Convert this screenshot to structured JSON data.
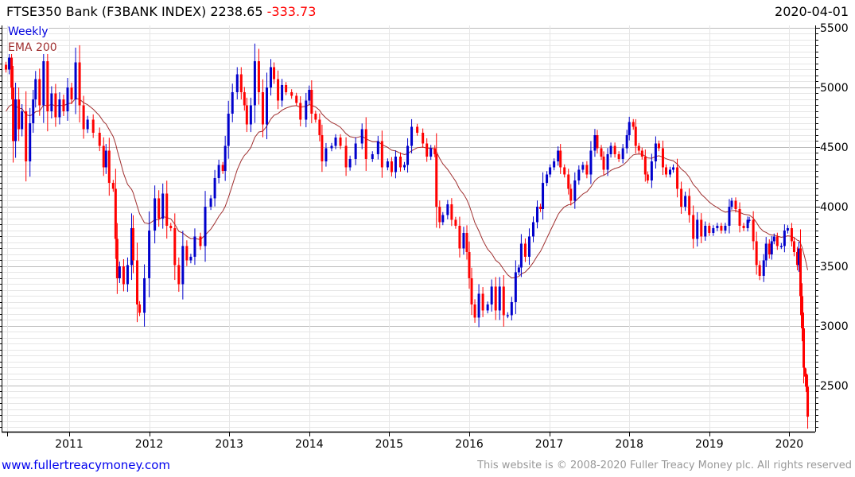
{
  "header": {
    "name": "FTSE350 Bank (F3BANK INDEX)",
    "last": "2238.65",
    "change": "-333.73",
    "date": "2020-04-01"
  },
  "legend": {
    "series": "Weekly",
    "ema": "EMA 200"
  },
  "footer": {
    "site": "www.fullertreacymoney.com",
    "copyright": "This website is © 2008-2020 Fuller Treacy Money plc. All rights reserved"
  },
  "colors": {
    "up": "#0000cc",
    "down": "#ff0000",
    "ema": "#a03030",
    "grid_major": "#bbbbbb",
    "grid_minor": "#e6e6e6"
  },
  "chart_data": {
    "type": "candlestick",
    "title": "FTSE350 Bank (F3BANK INDEX)",
    "xlim": [
      2010.155,
      2020.324
    ],
    "ylim": [
      2113,
      5520
    ],
    "x_ticks": [
      2011,
      2012,
      2013,
      2014,
      2015,
      2016,
      2017,
      2018,
      2019,
      2020
    ],
    "x_tick_labels": [
      "2011",
      "2012",
      "2013",
      "2014",
      "2015",
      "2016",
      "2017",
      "2018",
      "2019",
      "2020"
    ],
    "y_ticks": [
      2500,
      3000,
      3500,
      4000,
      4500,
      5000,
      5500
    ],
    "y_tick_labels": [
      "2500",
      "3000",
      "3500",
      "4000",
      "4500",
      "5000",
      "5500"
    ],
    "y_minor_step": 50,
    "grid": true,
    "ema_seed": 4800,
    "ema_time_constant_years": 0.4,
    "closes": [
      [
        2010.21,
        5150
      ],
      [
        2010.25,
        5250
      ],
      [
        2010.28,
        5000
      ],
      [
        2010.3,
        4550
      ],
      [
        2010.33,
        4900
      ],
      [
        2010.37,
        4650
      ],
      [
        2010.41,
        4800
      ],
      [
        2010.46,
        4380
      ],
      [
        2010.51,
        4700
      ],
      [
        2010.55,
        4900
      ],
      [
        2010.58,
        5070
      ],
      [
        2010.63,
        4850
      ],
      [
        2010.68,
        5220
      ],
      [
        2010.73,
        4800
      ],
      [
        2010.78,
        4950
      ],
      [
        2010.83,
        4750
      ],
      [
        2010.88,
        4900
      ],
      [
        2010.93,
        4800
      ],
      [
        2010.98,
        5000
      ],
      [
        2011.03,
        4900
      ],
      [
        2011.08,
        5210
      ],
      [
        2011.13,
        4850
      ],
      [
        2011.18,
        4650
      ],
      [
        2011.23,
        4730
      ],
      [
        2011.3,
        4620
      ],
      [
        2011.38,
        4510
      ],
      [
        2011.43,
        4330
      ],
      [
        2011.46,
        4470
      ],
      [
        2011.5,
        4200
      ],
      [
        2011.55,
        4150
      ],
      [
        2011.58,
        3730
      ],
      [
        2011.6,
        3400
      ],
      [
        2011.63,
        3500
      ],
      [
        2011.68,
        3350
      ],
      [
        2011.73,
        3510
      ],
      [
        2011.78,
        3820
      ],
      [
        2011.8,
        3550
      ],
      [
        2011.85,
        3180
      ],
      [
        2011.88,
        3110
      ],
      [
        2011.94,
        3400
      ],
      [
        2012.0,
        3800
      ],
      [
        2012.07,
        4070
      ],
      [
        2012.12,
        3900
      ],
      [
        2012.17,
        4110
      ],
      [
        2012.22,
        3840
      ],
      [
        2012.27,
        3820
      ],
      [
        2012.32,
        3510
      ],
      [
        2012.37,
        3350
      ],
      [
        2012.42,
        3670
      ],
      [
        2012.47,
        3550
      ],
      [
        2012.52,
        3580
      ],
      [
        2012.57,
        3750
      ],
      [
        2012.64,
        3670
      ],
      [
        2012.7,
        4000
      ],
      [
        2012.77,
        4070
      ],
      [
        2012.82,
        4240
      ],
      [
        2012.87,
        4350
      ],
      [
        2012.92,
        4300
      ],
      [
        2012.95,
        4510
      ],
      [
        2012.99,
        4780
      ],
      [
        2013.04,
        4960
      ],
      [
        2013.1,
        5110
      ],
      [
        2013.15,
        4960
      ],
      [
        2013.19,
        4850
      ],
      [
        2013.22,
        4690
      ],
      [
        2013.27,
        4850
      ],
      [
        2013.32,
        5220
      ],
      [
        2013.37,
        4960
      ],
      [
        2013.42,
        4690
      ],
      [
        2013.47,
        5000
      ],
      [
        2013.52,
        5170
      ],
      [
        2013.56,
        5070
      ],
      [
        2013.61,
        4890
      ],
      [
        2013.66,
        5020
      ],
      [
        2013.71,
        4960
      ],
      [
        2013.78,
        4930
      ],
      [
        2013.84,
        4870
      ],
      [
        2013.89,
        4730
      ],
      [
        2013.96,
        4890
      ],
      [
        2014.0,
        4980
      ],
      [
        2014.03,
        4780
      ],
      [
        2014.08,
        4730
      ],
      [
        2014.13,
        4600
      ],
      [
        2014.16,
        4380
      ],
      [
        2014.21,
        4490
      ],
      [
        2014.28,
        4510
      ],
      [
        2014.33,
        4580
      ],
      [
        2014.39,
        4510
      ],
      [
        2014.46,
        4330
      ],
      [
        2014.51,
        4400
      ],
      [
        2014.58,
        4530
      ],
      [
        2014.66,
        4650
      ],
      [
        2014.71,
        4400
      ],
      [
        2014.79,
        4440
      ],
      [
        2014.86,
        4550
      ],
      [
        2014.91,
        4330
      ],
      [
        2014.98,
        4380
      ],
      [
        2015.03,
        4290
      ],
      [
        2015.08,
        4420
      ],
      [
        2015.14,
        4330
      ],
      [
        2015.19,
        4350
      ],
      [
        2015.23,
        4510
      ],
      [
        2015.28,
        4670
      ],
      [
        2015.35,
        4620
      ],
      [
        2015.42,
        4530
      ],
      [
        2015.47,
        4420
      ],
      [
        2015.52,
        4490
      ],
      [
        2015.57,
        4440
      ],
      [
        2015.59,
        4000
      ],
      [
        2015.63,
        3870
      ],
      [
        2015.67,
        3930
      ],
      [
        2015.73,
        4020
      ],
      [
        2015.78,
        3890
      ],
      [
        2015.83,
        3840
      ],
      [
        2015.88,
        3650
      ],
      [
        2015.93,
        3780
      ],
      [
        2015.97,
        3620
      ],
      [
        2016.0,
        3400
      ],
      [
        2016.03,
        3180
      ],
      [
        2016.07,
        3070
      ],
      [
        2016.12,
        3270
      ],
      [
        2016.17,
        3130
      ],
      [
        2016.23,
        3180
      ],
      [
        2016.28,
        3330
      ],
      [
        2016.33,
        3130
      ],
      [
        2016.38,
        3330
      ],
      [
        2016.43,
        3090
      ],
      [
        2016.48,
        3090
      ],
      [
        2016.53,
        3200
      ],
      [
        2016.58,
        3450
      ],
      [
        2016.62,
        3490
      ],
      [
        2016.65,
        3690
      ],
      [
        2016.7,
        3580
      ],
      [
        2016.75,
        3750
      ],
      [
        2016.8,
        3870
      ],
      [
        2016.85,
        4000
      ],
      [
        2016.89,
        3980
      ],
      [
        2016.92,
        4200
      ],
      [
        2016.97,
        4270
      ],
      [
        2017.01,
        4330
      ],
      [
        2017.06,
        4380
      ],
      [
        2017.11,
        4470
      ],
      [
        2017.14,
        4330
      ],
      [
        2017.19,
        4270
      ],
      [
        2017.24,
        4150
      ],
      [
        2017.27,
        4050
      ],
      [
        2017.32,
        4220
      ],
      [
        2017.37,
        4310
      ],
      [
        2017.42,
        4350
      ],
      [
        2017.47,
        4270
      ],
      [
        2017.52,
        4470
      ],
      [
        2017.57,
        4600
      ],
      [
        2017.6,
        4490
      ],
      [
        2017.65,
        4420
      ],
      [
        2017.68,
        4310
      ],
      [
        2017.73,
        4440
      ],
      [
        2017.77,
        4510
      ],
      [
        2017.82,
        4440
      ],
      [
        2017.87,
        4400
      ],
      [
        2017.92,
        4490
      ],
      [
        2017.97,
        4600
      ],
      [
        2018.0,
        4710
      ],
      [
        2018.05,
        4670
      ],
      [
        2018.08,
        4510
      ],
      [
        2018.12,
        4470
      ],
      [
        2018.16,
        4420
      ],
      [
        2018.2,
        4270
      ],
      [
        2018.23,
        4220
      ],
      [
        2018.28,
        4380
      ],
      [
        2018.33,
        4530
      ],
      [
        2018.37,
        4490
      ],
      [
        2018.42,
        4330
      ],
      [
        2018.46,
        4270
      ],
      [
        2018.51,
        4310
      ],
      [
        2018.55,
        4330
      ],
      [
        2018.6,
        4150
      ],
      [
        2018.65,
        4000
      ],
      [
        2018.7,
        4090
      ],
      [
        2018.75,
        3930
      ],
      [
        2018.8,
        3730
      ],
      [
        2018.85,
        3890
      ],
      [
        2018.9,
        3750
      ],
      [
        2018.95,
        3840
      ],
      [
        2019.0,
        3780
      ],
      [
        2019.05,
        3820
      ],
      [
        2019.1,
        3840
      ],
      [
        2019.15,
        3800
      ],
      [
        2019.2,
        3840
      ],
      [
        2019.25,
        4000
      ],
      [
        2019.28,
        4050
      ],
      [
        2019.33,
        3980
      ],
      [
        2019.38,
        3840
      ],
      [
        2019.43,
        3820
      ],
      [
        2019.48,
        3890
      ],
      [
        2019.5,
        3890
      ],
      [
        2019.55,
        3710
      ],
      [
        2019.59,
        3510
      ],
      [
        2019.63,
        3420
      ],
      [
        2019.68,
        3550
      ],
      [
        2019.71,
        3690
      ],
      [
        2019.75,
        3600
      ],
      [
        2019.78,
        3710
      ],
      [
        2019.81,
        3750
      ],
      [
        2019.85,
        3670
      ],
      [
        2019.9,
        3670
      ],
      [
        2019.94,
        3800
      ],
      [
        2019.98,
        3820
      ],
      [
        2020.03,
        3710
      ],
      [
        2020.06,
        3620
      ],
      [
        2020.1,
        3510
      ],
      [
        2020.12,
        3650
      ],
      [
        2020.14,
        3250
      ],
      [
        2020.16,
        2980
      ],
      [
        2020.18,
        2650
      ],
      [
        2020.19,
        2600
      ],
      [
        2020.21,
        2490
      ],
      [
        2020.23,
        2238.65
      ]
    ]
  }
}
